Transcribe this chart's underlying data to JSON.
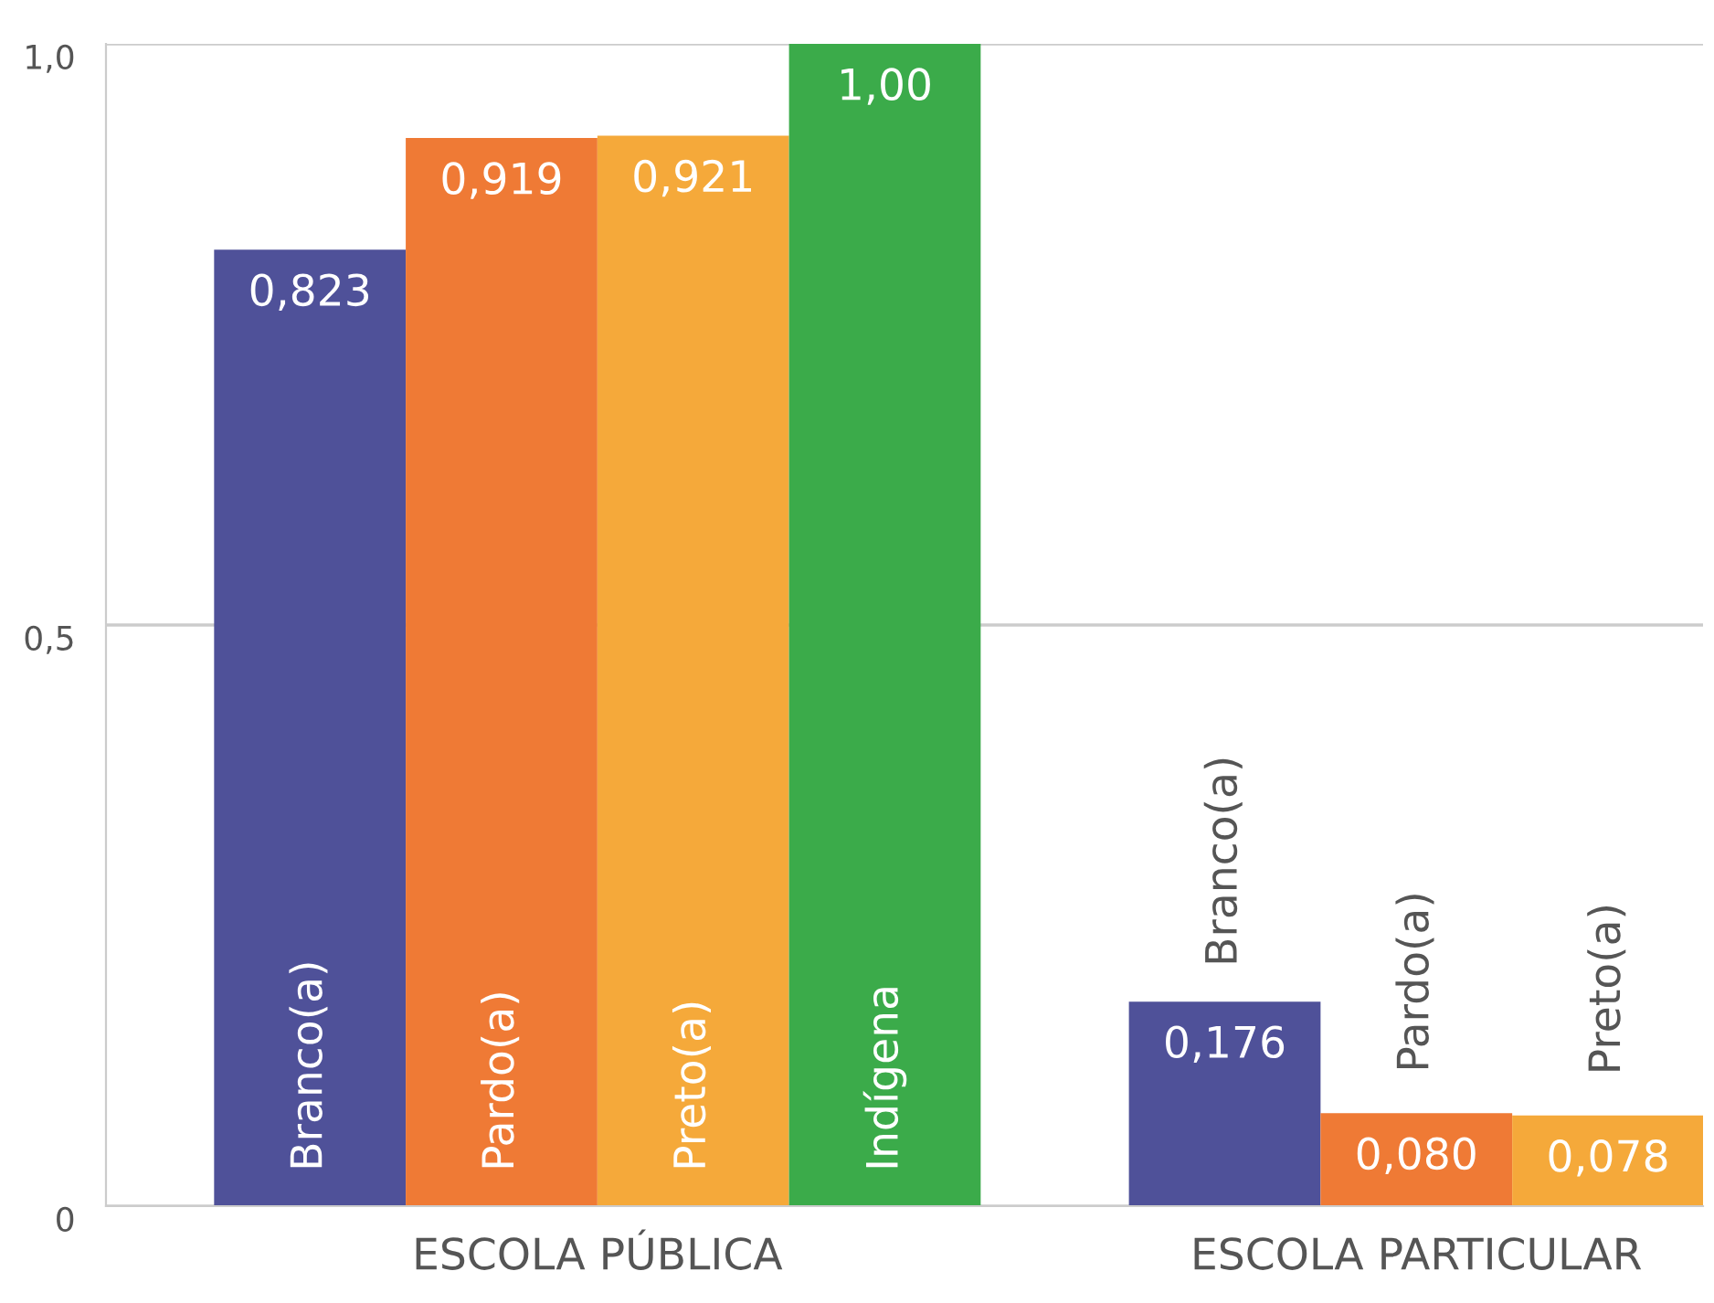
{
  "chart_data": {
    "type": "bar",
    "categories": [
      "ESCOLA PÚBLICA",
      "ESCOLA PARTICULAR"
    ],
    "series": [
      {
        "name": "Branco(a)",
        "color": "#4f5199",
        "values": [
          0.823,
          0.176
        ],
        "value_labels": [
          "0,823",
          "0,176"
        ]
      },
      {
        "name": "Pardo(a)",
        "color": "#ef7a35",
        "values": [
          0.919,
          0.08
        ],
        "value_labels": [
          "0,919",
          "0,080"
        ]
      },
      {
        "name": "Preto(a)",
        "color": "#f5a93a",
        "values": [
          0.921,
          0.078
        ],
        "value_labels": [
          "0,921",
          "0,078"
        ]
      },
      {
        "name": "Indígena",
        "color": "#3bab4a",
        "values": [
          1.0,
          null
        ],
        "value_labels": [
          "1,00",
          null
        ]
      }
    ],
    "ylim": [
      0,
      1
    ],
    "yticks": [
      0,
      {
        "value": 0.5,
        "label": "0,5"
      },
      {
        "value": 1,
        "label": "1,0"
      }
    ],
    "grid": "y",
    "legend": false
  }
}
